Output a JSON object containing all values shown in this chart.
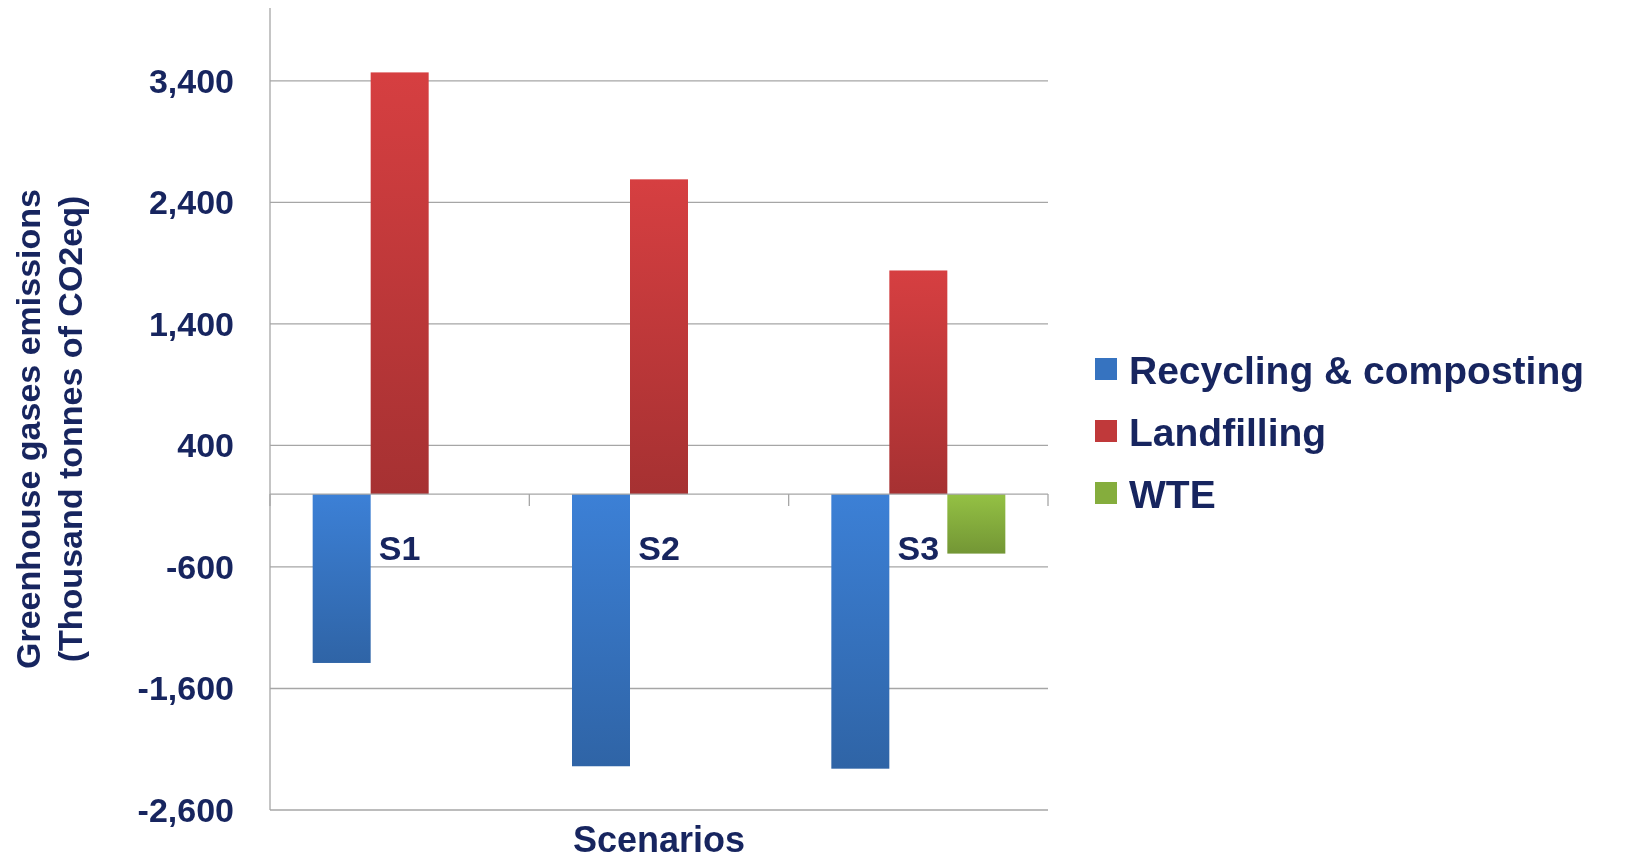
{
  "chart_data": {
    "type": "bar",
    "xlabel": "Scenarios",
    "ylabel": "Greenhouse gases emissions\n(Thousand tonnes of  CO2eq)",
    "categories": [
      "S1",
      "S2",
      "S3"
    ],
    "series": [
      {
        "name": "Recycling & composting",
        "color": "#3673c0",
        "values": [
          -1390,
          -2240,
          -2260
        ]
      },
      {
        "name": "Landfilling",
        "color": "#c0393a",
        "values": [
          3470,
          2590,
          1840
        ]
      },
      {
        "name": "WTE",
        "color": "#85ad3d",
        "values": [
          null,
          null,
          -490
        ]
      }
    ],
    "ylim": [
      -2600,
      4000
    ],
    "yticks": [
      {
        "value": -2600,
        "label": "-2,600"
      },
      {
        "value": -1600,
        "label": "-1,600"
      },
      {
        "value": -600,
        "label": "-600"
      },
      400,
      {
        "value": 1400,
        "label": "1,400"
      },
      {
        "value": 2400,
        "label": "2,400"
      },
      {
        "value": 3400,
        "label": "3,400"
      }
    ],
    "grid": "y",
    "legend": "right"
  }
}
